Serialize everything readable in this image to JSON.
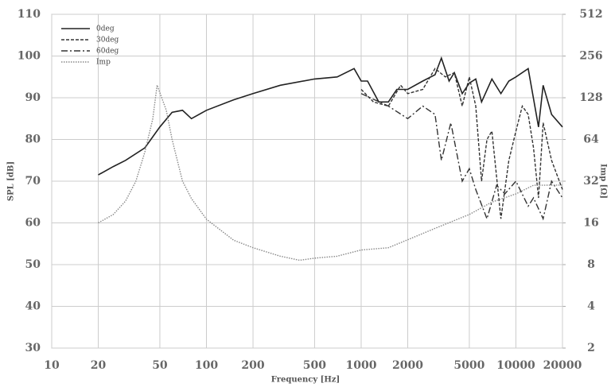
{
  "chart_data": {
    "type": "line",
    "xlabel": "Frequency [Hz]",
    "ylabel": "SPL [dB]",
    "y2label": "Imp [Ω]",
    "xscale": "log",
    "y2scale": "log",
    "grid": true,
    "legend": "upper left",
    "xlim": [
      10,
      20000
    ],
    "xticks": [
      10,
      20,
      50,
      100,
      200,
      500,
      1000,
      2000,
      5000,
      10000,
      20000
    ],
    "ylim": [
      30,
      110
    ],
    "yticks": [
      30,
      40,
      50,
      60,
      70,
      80,
      90,
      100,
      110
    ],
    "y2lim": [
      2,
      512
    ],
    "y2ticks": [
      2,
      4,
      8,
      16,
      32,
      64,
      128,
      256,
      512
    ],
    "series": [
      {
        "name": "0deg",
        "color": "#222222",
        "linestyle": "solid",
        "x": [
          20,
          25,
          30,
          40,
          50,
          60,
          70,
          80,
          100,
          150,
          200,
          300,
          500,
          700,
          900,
          1000,
          1100,
          1300,
          1500,
          1700,
          2000,
          2500,
          3000,
          3300,
          3700,
          4000,
          4500,
          5000,
          5500,
          6000,
          7000,
          8000,
          9000,
          10000,
          12000,
          14000,
          15000,
          17000,
          20000
        ],
        "values": [
          71.5,
          73.5,
          75,
          78,
          83,
          86.5,
          87,
          85,
          87,
          89.5,
          91,
          93,
          94.5,
          95,
          97,
          94,
          94,
          89,
          89,
          92,
          92,
          94,
          95.5,
          99.5,
          94,
          96,
          91,
          93.5,
          94.5,
          89,
          94.5,
          91,
          94,
          95,
          97,
          83,
          93,
          86,
          83
        ]
      },
      {
        "name": "30deg",
        "color": "#333333",
        "linestyle": "dashed",
        "x": [
          1000,
          1200,
          1500,
          1800,
          2000,
          2500,
          3000,
          3500,
          4000,
          4500,
          5000,
          5500,
          6000,
          6500,
          7000,
          8000,
          9000,
          10000,
          11000,
          12000,
          13000,
          14000,
          15000,
          17000,
          20000
        ],
        "values": [
          92,
          89,
          88,
          93,
          91,
          92,
          97,
          95,
          96,
          88,
          95,
          88,
          70,
          80,
          82,
          61,
          75,
          82,
          88,
          86,
          78,
          66,
          84,
          75,
          68
        ]
      },
      {
        "name": "60deg",
        "color": "#333333",
        "linestyle": "dashdot",
        "x": [
          1000,
          1500,
          2000,
          2500,
          3000,
          3300,
          3800,
          4500,
          5000,
          5500,
          6500,
          7500,
          8500,
          10000,
          12000,
          13000,
          15000,
          17000,
          20000
        ],
        "values": [
          91,
          88,
          85,
          88,
          86,
          75,
          84,
          70,
          73,
          68,
          61,
          69,
          67,
          70,
          64,
          66,
          61,
          70,
          66
        ]
      },
      {
        "name": "Imp",
        "color": "#888888",
        "linestyle": "dotted",
        "axis": "y2",
        "x": [
          20,
          25,
          30,
          35,
          40,
          45,
          48,
          55,
          60,
          70,
          80,
          100,
          150,
          200,
          300,
          400,
          500,
          700,
          1000,
          1500,
          2000,
          3000,
          5000,
          7000,
          10000,
          13000,
          20000
        ],
        "values": [
          16,
          18.4,
          23,
          32,
          52,
          90,
          158,
          104,
          64,
          32,
          24,
          17,
          12,
          10.6,
          9.2,
          8.6,
          8.9,
          9.2,
          10.2,
          10.6,
          12.1,
          14.6,
          18.4,
          22.6,
          25.9,
          29.9,
          30
        ]
      }
    ]
  }
}
